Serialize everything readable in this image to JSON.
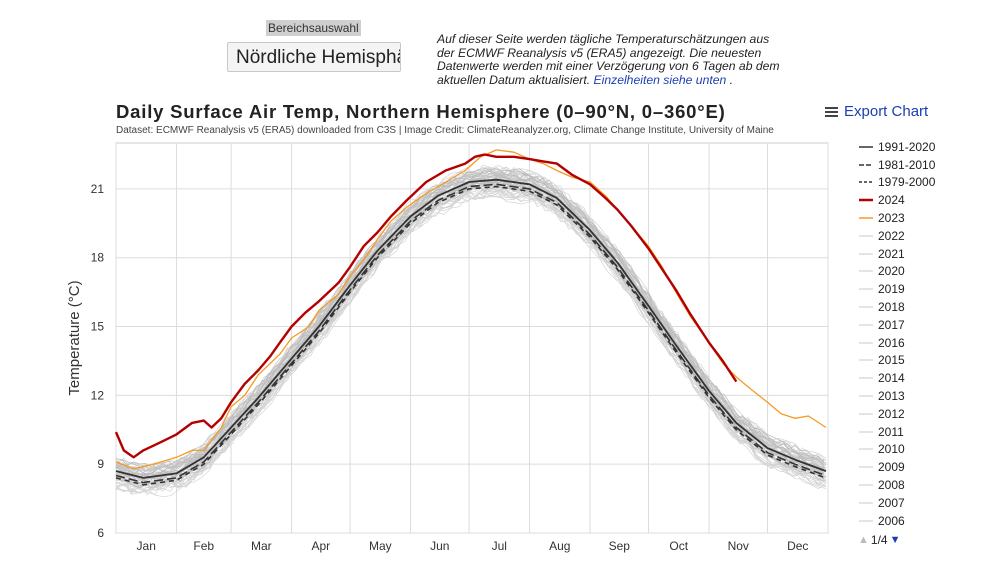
{
  "region": {
    "label": "Bereichsauswahl",
    "selected": "Nördliche Hemisphäre"
  },
  "info": {
    "text": "Auf dieser Seite werden tägliche Temperaturschätzungen aus der ECMWF Reanalysis v5 (ERA5) angezeigt. Die neuesten Datenwerte werden mit einer Verzögerung von 6 Tagen ab dem aktuellen Datum aktualisiert.",
    "link": "Einzelheiten siehe unten",
    "tail": " ."
  },
  "export_label": "Export Chart",
  "pager": {
    "text": "1/4"
  },
  "chart_data": {
    "type": "line",
    "title": "Daily Surface Air Temp, Northern Hemisphere (0–90°N, 0–360°E)",
    "subtitle": "Dataset: ECMWF Reanalysis v5 (ERA5) downloaded from C3S | Image Credit: ClimateReanalyzer.org, Climate Change Institute, University of Maine",
    "ylabel": "Temperature (°C)",
    "xlabel": "",
    "ylim": [
      6,
      23
    ],
    "yticks": [
      "6",
      "9",
      "12",
      "15",
      "18",
      "21"
    ],
    "months": [
      "Jan",
      "Feb",
      "Mar",
      "Apr",
      "May",
      "Jun",
      "Jul",
      "Aug",
      "Sep",
      "Oct",
      "Nov",
      "Dec"
    ],
    "grid": true,
    "legend_position": "right",
    "series": [
      {
        "name": "1991-2020",
        "color": "#333333",
        "style": "solid",
        "days": [
          1,
          15,
          32,
          46,
          60,
          74,
          91,
          105,
          121,
          135,
          152,
          166,
          182,
          196,
          213,
          227,
          244,
          258,
          274,
          288,
          305,
          319,
          335,
          349,
          365
        ],
        "values": [
          8.7,
          8.4,
          8.6,
          9.3,
          10.6,
          11.9,
          13.6,
          15.0,
          16.8,
          18.3,
          19.8,
          20.7,
          21.3,
          21.4,
          21.2,
          20.6,
          19.2,
          17.8,
          15.9,
          14.2,
          12.2,
          10.8,
          9.7,
          9.2,
          8.7
        ]
      },
      {
        "name": "1981-2010",
        "color": "#333333",
        "style": "dash",
        "days": [
          1,
          15,
          32,
          46,
          60,
          74,
          91,
          105,
          121,
          135,
          152,
          166,
          182,
          196,
          213,
          227,
          244,
          258,
          274,
          288,
          305,
          319,
          335,
          349,
          365
        ],
        "values": [
          8.5,
          8.2,
          8.4,
          9.1,
          10.4,
          11.7,
          13.4,
          14.8,
          16.6,
          18.1,
          19.6,
          20.5,
          21.1,
          21.2,
          21.0,
          20.4,
          19.0,
          17.6,
          15.7,
          14.0,
          12.0,
          10.6,
          9.5,
          9.0,
          8.5
        ]
      },
      {
        "name": "1979-2000",
        "color": "#333333",
        "style": "dash2",
        "days": [
          1,
          15,
          32,
          46,
          60,
          74,
          91,
          105,
          121,
          135,
          152,
          166,
          182,
          196,
          213,
          227,
          244,
          258,
          274,
          288,
          305,
          319,
          335,
          349,
          365
        ],
        "values": [
          8.4,
          8.1,
          8.3,
          9.0,
          10.3,
          11.6,
          13.3,
          14.7,
          16.5,
          18.0,
          19.5,
          20.4,
          21.0,
          21.1,
          20.9,
          20.3,
          18.9,
          17.5,
          15.6,
          13.9,
          11.9,
          10.5,
          9.4,
          8.9,
          8.4
        ]
      },
      {
        "name": "2024",
        "color": "#b30000",
        "style": "bold",
        "days": [
          1,
          5,
          10,
          15,
          20,
          25,
          32,
          40,
          46,
          50,
          55,
          60,
          67,
          74,
          80,
          85,
          91,
          98,
          105,
          110,
          115,
          121,
          128,
          135,
          142,
          150,
          160,
          170,
          180,
          185,
          190,
          196,
          205,
          213,
          220,
          227,
          235,
          244,
          252,
          258,
          265,
          274,
          281,
          288,
          295,
          305,
          312,
          319
        ],
        "values": [
          10.4,
          9.6,
          9.3,
          9.6,
          9.8,
          10.0,
          10.3,
          10.8,
          10.9,
          10.6,
          11.0,
          11.7,
          12.5,
          13.1,
          13.7,
          14.3,
          15.0,
          15.6,
          16.1,
          16.5,
          16.9,
          17.6,
          18.5,
          19.1,
          19.8,
          20.5,
          21.3,
          21.8,
          22.1,
          22.4,
          22.5,
          22.4,
          22.4,
          22.3,
          22.2,
          22.1,
          21.6,
          21.2,
          20.6,
          20.1,
          19.4,
          18.4,
          17.5,
          16.6,
          15.6,
          14.3,
          13.5,
          12.6
        ]
      },
      {
        "name": "2023",
        "color": "#f59a23",
        "style": "solid",
        "days": [
          1,
          10,
          20,
          32,
          40,
          46,
          55,
          60,
          67,
          74,
          85,
          91,
          100,
          105,
          115,
          121,
          128,
          135,
          142,
          150,
          160,
          170,
          180,
          188,
          196,
          205,
          213,
          220,
          227,
          235,
          244,
          252,
          258,
          265,
          274,
          281,
          288,
          295,
          305,
          312,
          319,
          326,
          335,
          342,
          349,
          356,
          365
        ],
        "values": [
          9.1,
          8.8,
          9.0,
          9.3,
          9.6,
          9.6,
          10.6,
          11.5,
          12.0,
          12.9,
          13.8,
          14.5,
          15.0,
          15.7,
          16.4,
          17.2,
          17.9,
          18.8,
          19.6,
          20.2,
          20.8,
          21.3,
          21.8,
          22.4,
          22.7,
          22.6,
          22.3,
          22.1,
          21.8,
          21.5,
          21.3,
          20.7,
          20.1,
          19.4,
          18.5,
          17.6,
          16.5,
          15.5,
          14.3,
          13.4,
          12.8,
          12.3,
          11.7,
          11.2,
          11.0,
          11.1,
          10.6
        ]
      },
      {
        "name": "2022",
        "color": "#c8c8c8",
        "style": "thin",
        "offset": 0.35
      },
      {
        "name": "2021",
        "color": "#c8c8c8",
        "style": "thin",
        "offset": 0.25
      },
      {
        "name": "2020",
        "color": "#c8c8c8",
        "style": "thin",
        "offset": 0.4
      },
      {
        "name": "2019",
        "color": "#c8c8c8",
        "style": "thin",
        "offset": 0.3
      },
      {
        "name": "2018",
        "color": "#c8c8c8",
        "style": "thin",
        "offset": 0.1
      },
      {
        "name": "2017",
        "color": "#c8c8c8",
        "style": "thin",
        "offset": 0.2
      },
      {
        "name": "2016",
        "color": "#c8c8c8",
        "style": "thin",
        "offset": 0.45
      },
      {
        "name": "2015",
        "color": "#c8c8c8",
        "style": "thin",
        "offset": 0.05
      },
      {
        "name": "2014",
        "color": "#c8c8c8",
        "style": "thin",
        "offset": 0.0
      },
      {
        "name": "2013",
        "color": "#c8c8c8",
        "style": "thin",
        "offset": -0.05
      },
      {
        "name": "2012",
        "color": "#c8c8c8",
        "style": "thin",
        "offset": -0.1
      },
      {
        "name": "2011",
        "color": "#c8c8c8",
        "style": "thin",
        "offset": -0.15
      },
      {
        "name": "2010",
        "color": "#c8c8c8",
        "style": "thin",
        "offset": 0.0
      },
      {
        "name": "2009",
        "color": "#c8c8c8",
        "style": "thin",
        "offset": -0.2
      },
      {
        "name": "2008",
        "color": "#c8c8c8",
        "style": "thin",
        "offset": -0.3
      },
      {
        "name": "2007",
        "color": "#c8c8c8",
        "style": "thin",
        "offset": -0.25
      },
      {
        "name": "2006",
        "color": "#c8c8c8",
        "style": "thin",
        "offset": -0.35
      }
    ]
  }
}
